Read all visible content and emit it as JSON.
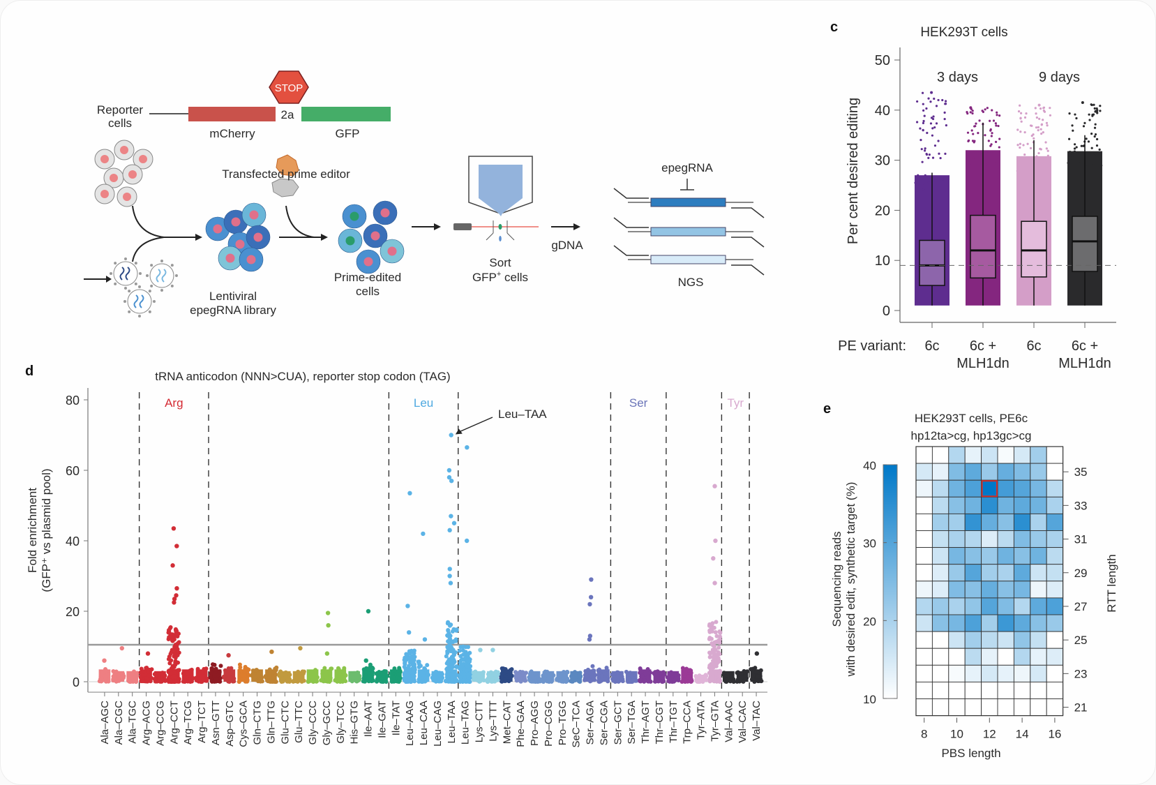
{
  "panel_a": {
    "reporter_label": "Reporter",
    "reporter_label2": "cells",
    "stop_label": "STOP",
    "mcherry_label": "mCherry",
    "linker_label": "2a",
    "gfp_label": "GFP",
    "transfected_label": "Transfected prime editor",
    "library_label1": "Lentiviral",
    "library_label2": "epegRNA library",
    "primed_label1": "Prime-edited",
    "primed_label2": "cells",
    "sort_label1": "Sort",
    "sort_label2": "GFP",
    "sort_label2_sup": "+",
    "sort_label3": " cells",
    "gdna_label": "gDNA",
    "epegrna_label": "epegRNA",
    "ngs_label": "NGS",
    "colors": {
      "mcherry": "#c9524b",
      "gfp": "#45ad68",
      "stop": "#e3503f",
      "sorter": "#93b3dc"
    }
  },
  "chart_data": [
    {
      "panel": "c",
      "type": "box",
      "title": "HEK293T cells",
      "ylabel": "Per cent desired editing",
      "xlabel_prefix": "PE variant:",
      "ylim": [
        0,
        50
      ],
      "yticks": [
        0,
        10,
        20,
        30,
        40,
        50
      ],
      "group_labels": [
        {
          "label": "3 days",
          "groups": [
            0,
            1
          ]
        },
        {
          "label": "9 days",
          "groups": [
            2,
            3
          ]
        }
      ],
      "reference_line": 9,
      "series": [
        {
          "name": "6c",
          "name2": "",
          "color": "#5e2d8f",
          "boxcolor": "#8d65ab",
          "q1": 5,
          "median": 9,
          "q3": 14,
          "whisker_low": 1,
          "whisker_high": 27.5,
          "max": 43.5
        },
        {
          "name": "6c +",
          "name2": "MLH1dn",
          "color": "#84267f",
          "boxcolor": "#a65aa0",
          "q1": 6.5,
          "median": 12,
          "q3": 19,
          "whisker_low": 1,
          "whisker_high": 37.5,
          "max": 40.5
        },
        {
          "name": "6c",
          "name2": "",
          "color": "#d49ec8",
          "boxcolor": "#e4bcdc",
          "q1": 6.7,
          "median": 12,
          "q3": 17.8,
          "whisker_low": 1,
          "whisker_high": 34,
          "max": 41
        },
        {
          "name": "6c +",
          "name2": "MLH1dn",
          "color": "#2a2a2c",
          "boxcolor": "#6c6c6e",
          "q1": 7.8,
          "median": 13.8,
          "q3": 18.8,
          "whisker_low": 1,
          "whisker_high": 35,
          "max": 41.5
        }
      ]
    },
    {
      "panel": "d",
      "type": "scatter",
      "title": "tRNA anticodon (NNN>CUA), reporter stop codon (TAG)",
      "ylabel": "Fold enrichment",
      "ylabel2": "(GFP⁺ vs plasmid pool)",
      "ylim": [
        0,
        80
      ],
      "yticks": [
        0,
        20,
        40,
        60,
        80
      ],
      "threshold_line": 10.5,
      "annotation": "Leu–TAA",
      "highlight_groups": [
        {
          "label": "Arg",
          "color": "#d42b34",
          "from": 3,
          "to": 7
        },
        {
          "label": "Leu",
          "color": "#4fa9e0",
          "from": 21,
          "to": 25
        },
        {
          "label": "Ser",
          "color": "#6a74b8",
          "from": 37,
          "to": 40
        },
        {
          "label": "Tyr",
          "color": "#d8a9cf",
          "from": 45,
          "to": 46
        }
      ],
      "categories": [
        "Ala–AGC",
        "Ala–CGC",
        "Ala–TGC",
        "Arg–ACG",
        "Arg–CCG",
        "Arg–CCT",
        "Arg–TCG",
        "Arg–TCT",
        "Asn–GTT",
        "Asp–GTC",
        "Cys–GCA",
        "Gln–CTG",
        "Gln–TTG",
        "Glu–CTC",
        "Glu–TTC",
        "Gly–CCC",
        "Gly–GCC",
        "Gly–TCC",
        "His–GTG",
        "Ile–AAT",
        "Ile–GAT",
        "Ile–TAT",
        "Leu–AAG",
        "Leu–CAA",
        "Leu–CAG",
        "Leu–TAA",
        "Leu–TAG",
        "Lys–CTT",
        "Lys–TTT",
        "Met–CAT",
        "Phe–GAA",
        "Pro–AGG",
        "Pro–CGG",
        "Pro–TGG",
        "SeC–TCA",
        "Ser–AGA",
        "Ser–CGA",
        "Ser–GCT",
        "Ser–TGA",
        "Thr–AGT",
        "Thr–CGT",
        "Thr–TGT",
        "Trp–CCA",
        "Tyr–ATA",
        "Tyr–GTA",
        "Val–AAC",
        "Val–CAC",
        "Val–TAC"
      ],
      "colors": [
        "#ee7f82",
        "#ee7f82",
        "#ee7f82",
        "#d22d36",
        "#d22d36",
        "#d22d36",
        "#d22d36",
        "#d22d36",
        "#8e1b22",
        "#c83a3e",
        "#dd7d2c",
        "#bf8333",
        "#bf8333",
        "#c19a3e",
        "#c19a3e",
        "#8cc54a",
        "#8cc54a",
        "#8cc54a",
        "#6cbc6e",
        "#1b9e75",
        "#1b9e75",
        "#1b9e75",
        "#5bb3e6",
        "#5bb3e6",
        "#5bb3e6",
        "#5bb3e6",
        "#5bb3e6",
        "#91d1e2",
        "#91d1e2",
        "#2d4a85",
        "#7b8bc8",
        "#6d94cc",
        "#6d94cc",
        "#6d94cc",
        "#5a88c0",
        "#6b75bd",
        "#6b75bd",
        "#6b75bd",
        "#6b75bd",
        "#7f3c98",
        "#7f3c98",
        "#7f3c98",
        "#9b3a96",
        "#e0b4d8",
        "#d8a9cf",
        "#2f2f33",
        "#2f2f33",
        "#2f2f33"
      ],
      "bulk_max": [
        4,
        3,
        3,
        4,
        3,
        16,
        4,
        4,
        5,
        4,
        5,
        4,
        4,
        3,
        3,
        4,
        4,
        4,
        3,
        5,
        3,
        4,
        9,
        6,
        3,
        17,
        10,
        3,
        3,
        4,
        3,
        3,
        3,
        3,
        3,
        5,
        4,
        3,
        3,
        4,
        3,
        3,
        4,
        2,
        17,
        3,
        3,
        4
      ],
      "outliers": [
        [
          0,
          6
        ],
        [
          1,
          9.5
        ],
        [
          3,
          8
        ],
        [
          5,
          43.5
        ],
        [
          5,
          38.5
        ],
        [
          5,
          33
        ],
        [
          5,
          26.5
        ],
        [
          5,
          24.5
        ],
        [
          5,
          23.5
        ],
        [
          5,
          22.5
        ],
        [
          9,
          7.5
        ],
        [
          12,
          8.5
        ],
        [
          14,
          9.5
        ],
        [
          16,
          19.5
        ],
        [
          16,
          16
        ],
        [
          16,
          8
        ],
        [
          19,
          20
        ],
        [
          19,
          6
        ],
        [
          22,
          53.5
        ],
        [
          22,
          21.5
        ],
        [
          22,
          14
        ],
        [
          23,
          42
        ],
        [
          23,
          12
        ],
        [
          25,
          70
        ],
        [
          25,
          60
        ],
        [
          25,
          58
        ],
        [
          25,
          57
        ],
        [
          25,
          47
        ],
        [
          25,
          45
        ],
        [
          25,
          43
        ],
        [
          25,
          32
        ],
        [
          25,
          30
        ],
        [
          25,
          28
        ],
        [
          26,
          66.5
        ],
        [
          26,
          40
        ],
        [
          27,
          9
        ],
        [
          28,
          9
        ],
        [
          35,
          29
        ],
        [
          35,
          24
        ],
        [
          35,
          22
        ],
        [
          35,
          13
        ],
        [
          35,
          12
        ],
        [
          44,
          55.5
        ],
        [
          44,
          40
        ],
        [
          44,
          35
        ],
        [
          44,
          28
        ],
        [
          47,
          8
        ]
      ]
    },
    {
      "panel": "e",
      "type": "heatmap",
      "title": "HEK293T cells, PE6c",
      "subtitle": "hp12ta>cg, hp13gc>cg",
      "xlabel": "PBS length",
      "ylabel": "RTT length",
      "colorbar_label": "Sequencing reads",
      "colorbar_label2": "with desired edit, synthetic target (%)",
      "colorbar_range": [
        10,
        40
      ],
      "colorbar_ticks": [
        10,
        20,
        30,
        40
      ],
      "x": [
        8,
        9,
        10,
        11,
        12,
        13,
        14,
        15,
        16
      ],
      "xticks": [
        8,
        10,
        12,
        14,
        16
      ],
      "y": [
        36,
        35,
        34,
        33,
        32,
        31,
        30,
        29,
        28,
        27,
        26,
        25,
        24,
        23,
        22,
        21
      ],
      "yticks": [
        35,
        33,
        31,
        29,
        27,
        25,
        23,
        21
      ],
      "highlight": {
        "x": 12,
        "y": 34
      },
      "values": [
        [
          10,
          10,
          19,
          13,
          16,
          11,
          15,
          21,
          10
        ],
        [
          15,
          13,
          25,
          29,
          22,
          28,
          25,
          22,
          10
        ],
        [
          12,
          18,
          27,
          31,
          40,
          32,
          30,
          26,
          18
        ],
        [
          10,
          18,
          24,
          27,
          35,
          27,
          29,
          27,
          20
        ],
        [
          10,
          21,
          21,
          34,
          28,
          24,
          35,
          20,
          30
        ],
        [
          10,
          17,
          20,
          19,
          14,
          18,
          25,
          22,
          20
        ],
        [
          10,
          16,
          26,
          24,
          22,
          27,
          24,
          27,
          18
        ],
        [
          10,
          14,
          22,
          30,
          21,
          20,
          29,
          16,
          17
        ],
        [
          12,
          14,
          25,
          24,
          28,
          24,
          26,
          12,
          14
        ],
        [
          19,
          22,
          20,
          23,
          30,
          25,
          19,
          29,
          31
        ],
        [
          16,
          24,
          26,
          31,
          21,
          33,
          29,
          24,
          22
        ],
        [
          10,
          10,
          16,
          21,
          18,
          16,
          23,
          17,
          10
        ],
        [
          10,
          10,
          10,
          18,
          13,
          10,
          19,
          13,
          14
        ],
        [
          10,
          10,
          11,
          13,
          15,
          13,
          12,
          15,
          10
        ],
        [
          10,
          10,
          10,
          10,
          10,
          10,
          10,
          10,
          10
        ],
        [
          10,
          10,
          10,
          10,
          10,
          10,
          10,
          10,
          10
        ]
      ]
    }
  ],
  "panel_labels": {
    "c": "c",
    "d": "d",
    "e": "e"
  }
}
